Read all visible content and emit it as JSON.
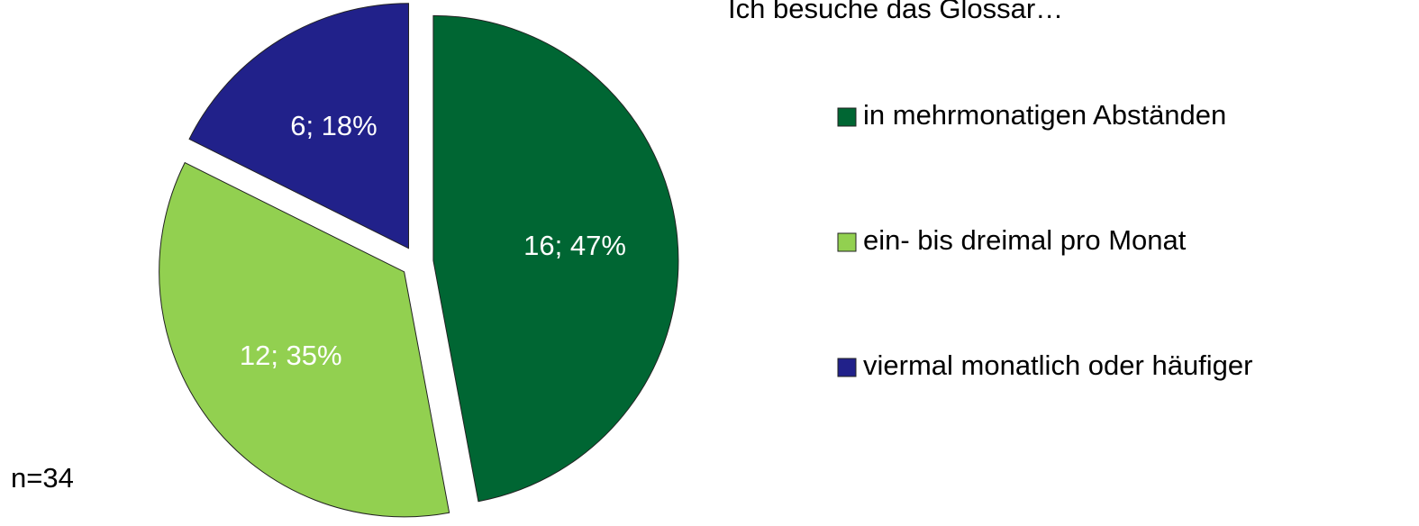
{
  "chart_data": {
    "type": "pie",
    "title": "Ich besuche das Glossar…",
    "categories": [
      "in mehrmonatigen Abständen",
      "ein- bis dreimal pro Monat",
      "viermal monatlich oder häufiger"
    ],
    "values": [
      16,
      12,
      6
    ],
    "value_labels": [
      "16; 47%",
      "12; 35%",
      "6; 18%"
    ],
    "colors": [
      "#006633",
      "#92d050",
      "#21218a"
    ],
    "annotation": "n=34"
  }
}
